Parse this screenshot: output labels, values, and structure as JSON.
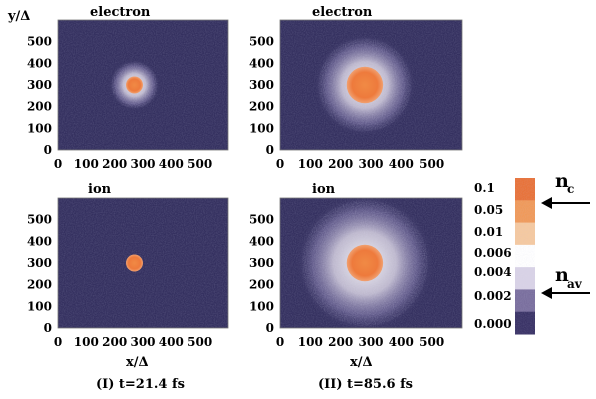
{
  "figure": {
    "axis_label_y": "y/Δ",
    "axis_label_x_left": "x/Δ",
    "axis_label_x_right": "x/Δ",
    "caption_left": "(I) t=21.4 fs",
    "caption_right": "(II) t=85.6 fs"
  },
  "colorbar": {
    "ticks": [
      "0.1",
      "0.05",
      "0.01",
      "0.006",
      "0.004",
      "0.002",
      "0.000"
    ],
    "marker_nc": "n",
    "marker_nc_sub": "c",
    "marker_nav": "n",
    "marker_nav_sub": "av",
    "colors": [
      "#e8733a",
      "#f09a5a",
      "#f5c9a0",
      "#ffffff",
      "#d9d3e6",
      "#7a6f9e",
      "#3a3366"
    ]
  },
  "chart_data": [
    {
      "type": "heatmap",
      "title": "electron",
      "panel": "(I) t=21.4 fs",
      "x_ticks": [
        "0",
        "100",
        "200",
        "300",
        "400",
        "500"
      ],
      "y_ticks": [
        "0",
        "100",
        "200",
        "300",
        "400",
        "500"
      ],
      "xlim": [
        0,
        600
      ],
      "ylim": [
        0,
        600
      ],
      "blob": {
        "cx": 270,
        "cy": 300,
        "core_radius": 30,
        "halo_radius": 90
      },
      "background_color": "#34305f"
    },
    {
      "type": "heatmap",
      "title": "electron",
      "panel": "(II) t=85.6 fs",
      "x_ticks": [
        "0",
        "100",
        "200",
        "300",
        "400",
        "500"
      ],
      "y_ticks": [
        "0",
        "100",
        "200",
        "300",
        "400",
        "500"
      ],
      "xlim": [
        0,
        600
      ],
      "ylim": [
        0,
        600
      ],
      "blob": {
        "cx": 280,
        "cy": 300,
        "core_radius": 60,
        "halo_radius": 170
      },
      "background_color": "#34305f"
    },
    {
      "type": "heatmap",
      "title": "ion",
      "panel": "(I) t=21.4 fs",
      "x_ticks": [
        "0",
        "100",
        "200",
        "300",
        "400",
        "500"
      ],
      "y_ticks": [
        "0",
        "100",
        "200",
        "300",
        "400",
        "500"
      ],
      "xlim": [
        0,
        600
      ],
      "ylim": [
        0,
        600
      ],
      "blob": {
        "cx": 270,
        "cy": 300,
        "core_radius": 30,
        "halo_radius": 0
      },
      "background_color": "#34305f"
    },
    {
      "type": "heatmap",
      "title": "ion",
      "panel": "(II) t=85.6 fs",
      "x_ticks": [
        "0",
        "100",
        "200",
        "300",
        "400",
        "500"
      ],
      "y_ticks": [
        "0",
        "100",
        "200",
        "300",
        "400",
        "500"
      ],
      "xlim": [
        0,
        600
      ],
      "ylim": [
        0,
        600
      ],
      "blob": {
        "cx": 280,
        "cy": 300,
        "core_radius": 60,
        "halo_radius": 230
      },
      "background_color": "#34305f"
    }
  ]
}
